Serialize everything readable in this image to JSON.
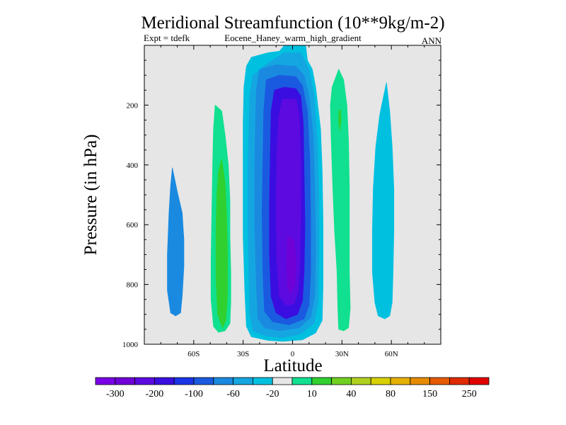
{
  "chart_data": {
    "type": "contour",
    "title": "Meridional Streamfunction (10**9kg/m-2)",
    "subtitle_left": "Expt = tdefk",
    "subtitle_center": "Eocene_Haney_warm_high_gradient",
    "subtitle_right": "ANN",
    "xlabel": "Latitude",
    "ylabel": "Pressure (in hPa)",
    "xlim": [
      -90,
      90
    ],
    "ylim": [
      1000,
      0
    ],
    "y_reversed": true,
    "x_ticks": [
      {
        "value": -60,
        "label": "60S"
      },
      {
        "value": -30,
        "label": "30S"
      },
      {
        "value": 0,
        "label": "0"
      },
      {
        "value": 30,
        "label": "30N"
      },
      {
        "value": 60,
        "label": "60N"
      }
    ],
    "y_ticks": [
      {
        "value": 200,
        "label": "200"
      },
      {
        "value": 400,
        "label": "400"
      },
      {
        "value": 600,
        "label": "600"
      },
      {
        "value": 800,
        "label": "800"
      },
      {
        "value": 1000,
        "label": "1000"
      }
    ],
    "background_color": "#e6e6e6",
    "colorbar": {
      "colors": [
        "#7a00e6",
        "#6f00d6",
        "#5c0ae0",
        "#3a0ee0",
        "#1a34e6",
        "#1a5ae0",
        "#1a8ae0",
        "#14a6e0",
        "#00c0e0",
        "#e6e6e6",
        "#10e090",
        "#30d030",
        "#70d020",
        "#b0d020",
        "#d8d000",
        "#e6b000",
        "#e68a00",
        "#e65a00",
        "#e02a00",
        "#e00000"
      ],
      "labels": [
        {
          "boundary": 1,
          "label": "-300"
        },
        {
          "boundary": 3,
          "label": "-200"
        },
        {
          "boundary": 5,
          "label": "-100"
        },
        {
          "boundary": 7,
          "label": "-60"
        },
        {
          "boundary": 9,
          "label": "-20"
        },
        {
          "boundary": 11,
          "label": "10"
        },
        {
          "boundary": 13,
          "label": "40"
        },
        {
          "boundary": 15,
          "label": "80"
        },
        {
          "boundary": 17,
          "label": "150"
        },
        {
          "boundary": 19,
          "label": "250"
        }
      ]
    },
    "regions": [
      {
        "name": "sh-polar-cell",
        "color": "#1a8ae0",
        "points": [
          [
            -73,
            410
          ],
          [
            -70,
            490
          ],
          [
            -67,
            560
          ],
          [
            -66,
            650
          ],
          [
            -66,
            740
          ],
          [
            -67,
            840
          ],
          [
            -68,
            895
          ],
          [
            -71,
            905
          ],
          [
            -74,
            895
          ],
          [
            -76,
            820
          ],
          [
            -76,
            700
          ],
          [
            -75,
            560
          ],
          [
            -74,
            470
          ]
        ]
      },
      {
        "name": "sh-ferrel-outer",
        "color": "#10e090",
        "points": [
          [
            -47,
            200
          ],
          [
            -43,
            220
          ],
          [
            -41,
            300
          ],
          [
            -39,
            400
          ],
          [
            -38,
            520
          ],
          [
            -38,
            640
          ],
          [
            -37.5,
            760
          ],
          [
            -37.5,
            860
          ],
          [
            -38,
            930
          ],
          [
            -41,
            955
          ],
          [
            -45,
            960
          ],
          [
            -48,
            940
          ],
          [
            -49.5,
            850
          ],
          [
            -49.5,
            720
          ],
          [
            -49,
            560
          ],
          [
            -48.5,
            400
          ],
          [
            -48,
            280
          ]
        ]
      },
      {
        "name": "sh-ferrel-core",
        "color": "#30d030",
        "points": [
          [
            -43,
            380
          ],
          [
            -41,
            460
          ],
          [
            -40,
            580
          ],
          [
            -39.5,
            700
          ],
          [
            -39.5,
            840
          ],
          [
            -40.5,
            920
          ],
          [
            -42.5,
            945
          ],
          [
            -45.5,
            900
          ],
          [
            -46.5,
            780
          ],
          [
            -46.5,
            620
          ],
          [
            -46,
            500
          ],
          [
            -45,
            420
          ]
        ]
      },
      {
        "name": "hadley-c1",
        "color": "#00c0e0",
        "points": [
          [
            -5,
            0
          ],
          [
            8,
            0
          ],
          [
            9,
            50
          ],
          [
            12,
            80
          ],
          [
            14,
            140
          ],
          [
            17,
            280
          ],
          [
            18,
            420
          ],
          [
            18.5,
            600
          ],
          [
            18.5,
            800
          ],
          [
            18,
            920
          ],
          [
            14,
            962
          ],
          [
            6,
            985
          ],
          [
            -6,
            990
          ],
          [
            -15,
            987
          ],
          [
            -25,
            975
          ],
          [
            -28,
            940
          ],
          [
            -29,
            820
          ],
          [
            -30,
            640
          ],
          [
            -30,
            440
          ],
          [
            -30,
            260
          ],
          [
            -29.5,
            140
          ],
          [
            -28,
            70
          ],
          [
            -25,
            40
          ],
          [
            -15,
            25
          ],
          [
            -8,
            20
          ]
        ]
      },
      {
        "name": "hadley-c2",
        "color": "#14a6e0",
        "points": [
          [
            -5,
            25
          ],
          [
            5,
            25
          ],
          [
            10,
            80
          ],
          [
            13,
            170
          ],
          [
            15,
            320
          ],
          [
            16,
            500
          ],
          [
            16,
            700
          ],
          [
            15.5,
            860
          ],
          [
            13,
            930
          ],
          [
            5,
            965
          ],
          [
            -6,
            978
          ],
          [
            -16,
            972
          ],
          [
            -24,
            955
          ],
          [
            -26,
            900
          ],
          [
            -26.5,
            760
          ],
          [
            -27,
            600
          ],
          [
            -27,
            420
          ],
          [
            -26.5,
            280
          ],
          [
            -26,
            170
          ],
          [
            -24,
            100
          ],
          [
            -15,
            60
          ]
        ]
      },
      {
        "name": "hadley-c3",
        "color": "#1a8ae0",
        "points": [
          [
            -20,
            80
          ],
          [
            -10,
            65
          ],
          [
            2,
            70
          ],
          [
            7,
            100
          ],
          [
            10,
            170
          ],
          [
            12.5,
            300
          ],
          [
            13.5,
            480
          ],
          [
            14,
            680
          ],
          [
            13.5,
            840
          ],
          [
            11,
            910
          ],
          [
            4,
            945
          ],
          [
            -8,
            955
          ],
          [
            -17,
            945
          ],
          [
            -21,
            915
          ],
          [
            -22,
            800
          ],
          [
            -23,
            600
          ],
          [
            -23,
            420
          ],
          [
            -22.5,
            260
          ],
          [
            -22,
            150
          ]
        ]
      },
      {
        "name": "hadley-c4",
        "color": "#1a5ae0",
        "points": [
          [
            -16,
            115
          ],
          [
            -8,
            100
          ],
          [
            2,
            105
          ],
          [
            6,
            135
          ],
          [
            9,
            220
          ],
          [
            10.5,
            380
          ],
          [
            11,
            580
          ],
          [
            11,
            760
          ],
          [
            10,
            870
          ],
          [
            7,
            915
          ],
          [
            -2,
            935
          ],
          [
            -12,
            925
          ],
          [
            -17,
            890
          ],
          [
            -18,
            760
          ],
          [
            -18.5,
            560
          ],
          [
            -18,
            380
          ],
          [
            -17.5,
            220
          ]
        ]
      },
      {
        "name": "hadley-c5",
        "color": "#3a0ee0",
        "points": [
          [
            -11,
            150
          ],
          [
            -5,
            140
          ],
          [
            2,
            145
          ],
          [
            5,
            170
          ],
          [
            6.5,
            260
          ],
          [
            7,
            420
          ],
          [
            7.5,
            600
          ],
          [
            7,
            760
          ],
          [
            6,
            855
          ],
          [
            3,
            900
          ],
          [
            -4,
            915
          ],
          [
            -10,
            895
          ],
          [
            -13,
            840
          ],
          [
            -14,
            700
          ],
          [
            -14,
            520
          ],
          [
            -13.5,
            360
          ],
          [
            -13,
            220
          ]
        ]
      },
      {
        "name": "hadley-c6",
        "color": "#5c0ae0",
        "points": [
          [
            -6,
            180
          ],
          [
            2,
            180
          ],
          [
            4,
            230
          ],
          [
            5,
            380
          ],
          [
            5,
            560
          ],
          [
            4.5,
            720
          ],
          [
            3.5,
            820
          ],
          [
            1,
            865
          ],
          [
            -4,
            870
          ],
          [
            -8,
            840
          ],
          [
            -9.5,
            720
          ],
          [
            -10,
            540
          ],
          [
            -9.5,
            360
          ],
          [
            -8.5,
            240
          ]
        ]
      },
      {
        "name": "hadley-c7",
        "color": "#6f00d6",
        "points": [
          [
            -3,
            640
          ],
          [
            1,
            650
          ],
          [
            2,
            720
          ],
          [
            1.5,
            800
          ],
          [
            -1,
            830
          ],
          [
            -3,
            810
          ],
          [
            -3.5,
            720
          ]
        ]
      },
      {
        "name": "nh-ferrel",
        "color": "#10e090",
        "points": [
          [
            28,
            80
          ],
          [
            31,
            115
          ],
          [
            33,
            200
          ],
          [
            34,
            320
          ],
          [
            34.5,
            480
          ],
          [
            34.5,
            620
          ],
          [
            34.5,
            760
          ],
          [
            35,
            880
          ],
          [
            34,
            945
          ],
          [
            31,
            955
          ],
          [
            28,
            950
          ],
          [
            27.5,
            880
          ],
          [
            27,
            760
          ],
          [
            25.5,
            620
          ],
          [
            24.5,
            480
          ],
          [
            23.5,
            320
          ],
          [
            23,
            200
          ],
          [
            24,
            140
          ]
        ]
      },
      {
        "name": "nh-ferrel-speck",
        "color": "#30d030",
        "points": [
          [
            28,
            220
          ],
          [
            29,
            215
          ],
          [
            29.5,
            250
          ],
          [
            28.6,
            285
          ],
          [
            28,
            260
          ]
        ]
      },
      {
        "name": "nh-polar-cell",
        "color": "#00c0e0",
        "points": [
          [
            57,
            125
          ],
          [
            59,
            220
          ],
          [
            60.5,
            340
          ],
          [
            61.5,
            480
          ],
          [
            61.5,
            620
          ],
          [
            61,
            760
          ],
          [
            60.5,
            860
          ],
          [
            59,
            905
          ],
          [
            56,
            915
          ],
          [
            52,
            905
          ],
          [
            50,
            860
          ],
          [
            48.5,
            760
          ],
          [
            48.5,
            620
          ],
          [
            49,
            480
          ],
          [
            50.5,
            340
          ],
          [
            53,
            230
          ]
        ]
      }
    ]
  }
}
